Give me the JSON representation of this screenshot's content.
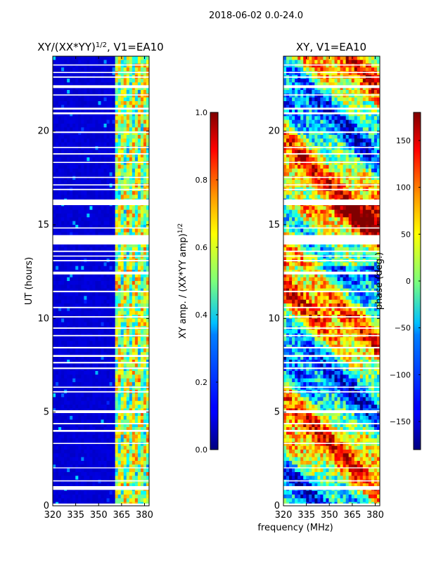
{
  "figure": {
    "suptitle": "2018-06-02 0.0-24.0",
    "xlabel": "frequency (MHz)"
  },
  "chart_data": [
    {
      "type": "heatmap",
      "title_main": "XY/(XX*YY)",
      "title_sup": "1/2",
      "title_tail": ", V1=EA10",
      "quantity": "amplitude",
      "x": {
        "label": "frequency (MHz)",
        "range": [
          320,
          383
        ],
        "ticks": [
          320,
          335,
          350,
          365,
          380
        ]
      },
      "y": {
        "label": "UT (hours)",
        "range": [
          0,
          24
        ],
        "ticks": [
          0,
          5,
          10,
          15,
          20
        ]
      },
      "colorbar": {
        "label_main": "XY amp. / (XX*YY amp)",
        "label_sup": "1/2",
        "range": [
          0.0,
          1.0
        ],
        "ticks": [
          0.0,
          0.2,
          0.4,
          0.6,
          0.8,
          1.0
        ],
        "tick_labels": [
          "0.0",
          "0.2",
          "0.4",
          "0.6",
          "0.8",
          "1.0"
        ]
      },
      "band_start_mhz": 360,
      "flagged_ut_ranges": [
        [
          0.0,
          0.12
        ],
        [
          0.85,
          1.05
        ],
        [
          1.3,
          1.36
        ],
        [
          2.0,
          2.05
        ],
        [
          3.3,
          3.36
        ],
        [
          3.95,
          4.05
        ],
        [
          4.35,
          4.42
        ],
        [
          4.95,
          5.1
        ],
        [
          6.05,
          6.12
        ],
        [
          6.3,
          6.36
        ],
        [
          7.3,
          7.38
        ],
        [
          7.6,
          7.68
        ],
        [
          7.95,
          8.05
        ],
        [
          8.4,
          8.48
        ],
        [
          9.05,
          9.12
        ],
        [
          9.45,
          9.52
        ],
        [
          10.05,
          10.12
        ],
        [
          10.55,
          10.62
        ],
        [
          11.4,
          11.48
        ],
        [
          12.35,
          12.5
        ],
        [
          13.05,
          13.12
        ],
        [
          13.3,
          13.36
        ],
        [
          13.55,
          13.62
        ],
        [
          13.95,
          14.45
        ],
        [
          14.8,
          14.86
        ],
        [
          16.05,
          16.35
        ],
        [
          16.85,
          16.92
        ],
        [
          17.1,
          17.16
        ],
        [
          17.5,
          17.56
        ],
        [
          18.3,
          18.36
        ],
        [
          18.75,
          18.82
        ],
        [
          19.1,
          19.16
        ],
        [
          19.9,
          19.98
        ],
        [
          20.9,
          21.0
        ],
        [
          21.15,
          21.25
        ],
        [
          21.9,
          21.96
        ],
        [
          22.3,
          22.45
        ],
        [
          22.85,
          22.92
        ],
        [
          23.1,
          23.16
        ],
        [
          23.5,
          23.56
        ]
      ]
    },
    {
      "type": "heatmap",
      "title_main": "XY, V1=EA10",
      "quantity": "phase",
      "x": {
        "label": "frequency (MHz)",
        "range": [
          320,
          383
        ],
        "ticks": [
          320,
          335,
          350,
          365,
          380
        ]
      },
      "y": {
        "label": "",
        "range": [
          0,
          24
        ],
        "ticks": [
          0,
          5,
          10,
          15,
          20
        ]
      },
      "colorbar": {
        "label_main": "phase (deg.)",
        "range": [
          -180,
          180
        ],
        "ticks": [
          -150,
          -100,
          -50,
          0,
          50,
          100,
          150
        ],
        "tick_labels": [
          "−150",
          "−100",
          "−50",
          "0",
          "50",
          "100",
          "150"
        ]
      },
      "flagged_ut_ranges": [
        [
          0.0,
          0.12
        ],
        [
          0.85,
          1.05
        ],
        [
          1.3,
          1.36
        ],
        [
          2.0,
          2.05
        ],
        [
          3.3,
          3.36
        ],
        [
          3.95,
          4.05
        ],
        [
          4.35,
          4.42
        ],
        [
          4.95,
          5.1
        ],
        [
          6.05,
          6.12
        ],
        [
          6.3,
          6.36
        ],
        [
          7.3,
          7.38
        ],
        [
          7.6,
          7.68
        ],
        [
          7.95,
          8.05
        ],
        [
          8.4,
          8.48
        ],
        [
          9.05,
          9.12
        ],
        [
          9.45,
          9.52
        ],
        [
          10.05,
          10.12
        ],
        [
          10.55,
          10.62
        ],
        [
          11.4,
          11.48
        ],
        [
          12.35,
          12.5
        ],
        [
          13.05,
          13.12
        ],
        [
          13.3,
          13.36
        ],
        [
          13.55,
          13.62
        ],
        [
          13.95,
          14.45
        ],
        [
          14.8,
          14.86
        ],
        [
          16.05,
          16.35
        ],
        [
          16.85,
          16.92
        ],
        [
          17.1,
          17.16
        ],
        [
          17.5,
          17.56
        ],
        [
          18.3,
          18.36
        ],
        [
          18.75,
          18.82
        ],
        [
          19.1,
          19.16
        ],
        [
          19.9,
          19.98
        ],
        [
          20.9,
          21.0
        ],
        [
          21.15,
          21.25
        ],
        [
          21.9,
          21.96
        ],
        [
          22.3,
          22.45
        ],
        [
          22.85,
          22.92
        ],
        [
          23.1,
          23.16
        ],
        [
          23.5,
          23.56
        ]
      ]
    }
  ]
}
